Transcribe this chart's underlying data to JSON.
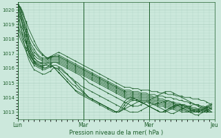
{
  "title": "",
  "xlabel": "Pression niveau de la mer( hPa )",
  "ylabel": "",
  "background_color": "#cce8dc",
  "grid_color": "#a8ccbc",
  "line_color": "#1a5c28",
  "marker_color": "#1a5c28",
  "ylim": [
    1012.5,
    1020.5
  ],
  "yticks": [
    1013,
    1014,
    1015,
    1016,
    1017,
    1018,
    1019,
    1020
  ],
  "xlim": [
    0,
    72
  ],
  "xtick_positions": [
    0,
    24,
    48,
    72
  ],
  "xtick_labels": [
    "Lun",
    "Mar",
    "Mer",
    "Jeu"
  ],
  "series": [
    [
      1020.5,
      1020.1,
      1019.7,
      1019.2,
      1018.7,
      1018.3,
      1017.9,
      1017.5,
      1017.2,
      1017.0,
      1016.8,
      1016.6,
      1016.8,
      1016.9,
      1017.0,
      1017.1,
      1017.0,
      1016.9,
      1016.8,
      1016.7,
      1016.6,
      1016.5,
      1016.4,
      1016.3,
      1016.2,
      1016.1,
      1016.0,
      1015.9,
      1015.8,
      1015.7,
      1015.6,
      1015.5,
      1015.4,
      1015.3,
      1015.2,
      1015.1,
      1015.0,
      1014.9,
      1014.8,
      1014.7,
      1014.7,
      1014.7,
      1014.6,
      1014.6,
      1014.6,
      1014.5,
      1014.5,
      1014.5,
      1014.5,
      1014.4,
      1014.4,
      1014.4,
      1014.3,
      1014.3,
      1014.3,
      1014.2,
      1014.2,
      1014.2,
      1014.1,
      1014.1,
      1014.1,
      1014.0,
      1014.0,
      1014.0,
      1013.9,
      1013.9,
      1013.9,
      1013.8,
      1013.8,
      1013.7,
      1013.6,
      1013.5
    ],
    [
      1020.2,
      1019.7,
      1019.2,
      1018.7,
      1018.3,
      1017.9,
      1017.6,
      1017.3,
      1017.1,
      1016.9,
      1016.8,
      1016.7,
      1016.8,
      1016.8,
      1016.9,
      1016.9,
      1016.8,
      1016.7,
      1016.6,
      1016.5,
      1016.4,
      1016.3,
      1016.2,
      1016.1,
      1016.0,
      1015.9,
      1015.8,
      1015.7,
      1015.6,
      1015.5,
      1015.4,
      1015.3,
      1015.2,
      1015.1,
      1015.0,
      1014.9,
      1014.8,
      1014.7,
      1014.6,
      1014.5,
      1014.5,
      1014.5,
      1014.4,
      1014.4,
      1014.4,
      1014.3,
      1014.3,
      1014.3,
      1014.2,
      1014.2,
      1014.2,
      1014.1,
      1014.1,
      1014.1,
      1014.0,
      1014.0,
      1014.0,
      1013.9,
      1013.9,
      1013.8,
      1013.8,
      1013.7,
      1013.7,
      1013.6,
      1013.6,
      1013.5,
      1013.5,
      1013.4,
      1013.4,
      1013.3,
      1013.3,
      1013.2
    ],
    [
      1019.8,
      1019.4,
      1018.9,
      1018.5,
      1018.0,
      1017.6,
      1017.3,
      1017.0,
      1016.8,
      1016.7,
      1016.7,
      1016.7,
      1016.8,
      1016.8,
      1016.8,
      1016.8,
      1016.7,
      1016.6,
      1016.5,
      1016.4,
      1016.3,
      1016.2,
      1016.1,
      1016.0,
      1015.9,
      1015.8,
      1015.7,
      1015.6,
      1015.5,
      1015.4,
      1015.3,
      1015.2,
      1015.1,
      1015.0,
      1014.9,
      1014.8,
      1014.7,
      1014.6,
      1014.5,
      1014.4,
      1014.4,
      1014.4,
      1014.3,
      1014.3,
      1014.3,
      1014.2,
      1014.2,
      1014.2,
      1014.1,
      1014.1,
      1014.0,
      1014.0,
      1013.9,
      1013.9,
      1013.8,
      1013.8,
      1013.7,
      1013.7,
      1013.6,
      1013.6,
      1013.5,
      1013.5,
      1013.4,
      1013.4,
      1013.3,
      1013.3,
      1013.2,
      1013.2,
      1013.1,
      1013.1,
      1013.0,
      1013.0
    ],
    [
      1019.5,
      1019.0,
      1018.6,
      1018.2,
      1017.8,
      1017.4,
      1017.1,
      1016.9,
      1016.7,
      1016.6,
      1016.6,
      1016.7,
      1016.7,
      1016.8,
      1016.8,
      1016.8,
      1016.7,
      1016.6,
      1016.5,
      1016.4,
      1016.3,
      1016.2,
      1016.1,
      1016.0,
      1015.9,
      1015.8,
      1015.7,
      1015.6,
      1015.5,
      1015.4,
      1015.3,
      1015.2,
      1015.1,
      1015.0,
      1014.9,
      1014.8,
      1014.7,
      1014.6,
      1014.5,
      1014.4,
      1014.3,
      1014.3,
      1014.2,
      1014.2,
      1014.2,
      1014.1,
      1014.1,
      1014.1,
      1014.0,
      1014.0,
      1013.9,
      1013.9,
      1013.8,
      1013.8,
      1013.7,
      1013.7,
      1013.6,
      1013.6,
      1013.5,
      1013.5,
      1013.4,
      1013.4,
      1013.3,
      1013.3,
      1013.2,
      1013.2,
      1013.1,
      1013.1,
      1013.0,
      1013.0,
      1013.0,
      1013.0
    ],
    [
      1019.2,
      1018.8,
      1018.3,
      1017.9,
      1017.5,
      1017.2,
      1016.9,
      1016.7,
      1016.6,
      1016.5,
      1016.5,
      1016.6,
      1016.7,
      1016.7,
      1016.7,
      1016.7,
      1016.6,
      1016.5,
      1016.4,
      1016.3,
      1016.2,
      1016.1,
      1016.0,
      1015.9,
      1015.8,
      1015.7,
      1015.6,
      1015.5,
      1015.4,
      1015.3,
      1015.2,
      1015.1,
      1015.0,
      1014.9,
      1014.8,
      1014.7,
      1014.6,
      1014.5,
      1014.4,
      1014.3,
      1014.2,
      1014.2,
      1014.1,
      1014.1,
      1014.1,
      1014.0,
      1014.0,
      1014.0,
      1013.9,
      1013.9,
      1013.8,
      1013.8,
      1013.7,
      1013.7,
      1013.6,
      1013.6,
      1013.5,
      1013.5,
      1013.4,
      1013.4,
      1013.3,
      1013.3,
      1013.2,
      1013.2,
      1013.1,
      1013.1,
      1013.0,
      1013.0,
      1013.0,
      1013.0,
      1013.1,
      1013.2
    ],
    [
      1019.0,
      1018.5,
      1018.1,
      1017.7,
      1017.3,
      1017.0,
      1016.7,
      1016.5,
      1016.4,
      1016.4,
      1016.4,
      1016.5,
      1016.6,
      1016.6,
      1016.6,
      1016.6,
      1016.5,
      1016.4,
      1016.3,
      1016.2,
      1016.1,
      1016.0,
      1015.9,
      1015.8,
      1015.7,
      1015.6,
      1015.5,
      1015.4,
      1015.3,
      1015.2,
      1015.1,
      1015.0,
      1014.9,
      1014.8,
      1014.7,
      1014.6,
      1014.5,
      1014.4,
      1014.3,
      1014.2,
      1014.1,
      1014.1,
      1014.0,
      1014.0,
      1014.0,
      1013.9,
      1013.9,
      1013.9,
      1013.8,
      1013.8,
      1013.7,
      1013.7,
      1013.6,
      1013.6,
      1013.5,
      1013.5,
      1013.4,
      1013.4,
      1013.3,
      1013.3,
      1013.2,
      1013.2,
      1013.1,
      1013.1,
      1013.0,
      1013.0,
      1013.0,
      1013.1,
      1013.1,
      1013.2,
      1013.3,
      1013.4
    ],
    [
      1018.8,
      1018.3,
      1017.8,
      1017.4,
      1017.1,
      1016.8,
      1016.5,
      1016.4,
      1016.3,
      1016.3,
      1016.3,
      1016.4,
      1016.5,
      1016.5,
      1016.5,
      1016.5,
      1016.4,
      1016.3,
      1016.2,
      1016.1,
      1016.0,
      1015.9,
      1015.8,
      1015.7,
      1015.6,
      1015.5,
      1015.4,
      1015.3,
      1015.2,
      1015.1,
      1015.0,
      1014.9,
      1014.8,
      1014.7,
      1014.6,
      1014.5,
      1014.4,
      1014.3,
      1014.2,
      1014.1,
      1014.0,
      1014.0,
      1013.9,
      1013.9,
      1013.9,
      1013.8,
      1013.8,
      1013.8,
      1013.7,
      1013.7,
      1013.6,
      1013.6,
      1013.5,
      1013.5,
      1013.4,
      1013.4,
      1013.3,
      1013.3,
      1013.2,
      1013.2,
      1013.1,
      1013.1,
      1013.0,
      1013.0,
      1013.0,
      1013.1,
      1013.1,
      1013.2,
      1013.2,
      1013.3,
      1013.4,
      1013.5
    ],
    [
      1018.5,
      1018.0,
      1017.6,
      1017.2,
      1016.8,
      1016.5,
      1016.3,
      1016.2,
      1016.1,
      1016.1,
      1016.2,
      1016.3,
      1016.4,
      1016.4,
      1016.4,
      1016.4,
      1016.3,
      1016.2,
      1016.1,
      1016.0,
      1015.9,
      1015.8,
      1015.7,
      1015.6,
      1015.5,
      1015.4,
      1015.3,
      1015.2,
      1015.1,
      1015.0,
      1014.9,
      1014.8,
      1014.7,
      1014.6,
      1014.5,
      1014.4,
      1014.3,
      1014.2,
      1014.1,
      1014.0,
      1013.9,
      1013.9,
      1013.8,
      1013.8,
      1013.8,
      1013.7,
      1013.7,
      1013.7,
      1013.6,
      1013.6,
      1013.5,
      1013.5,
      1013.4,
      1013.4,
      1013.3,
      1013.3,
      1013.2,
      1013.2,
      1013.1,
      1013.1,
      1013.0,
      1013.0,
      1013.0,
      1013.1,
      1013.1,
      1013.2,
      1013.2,
      1013.3,
      1013.3,
      1013.4,
      1013.5,
      1013.6
    ],
    [
      1020.3,
      1019.5,
      1018.7,
      1017.8,
      1017.1,
      1016.7,
      1016.4,
      1016.2,
      1016.1,
      1016.0,
      1016.0,
      1016.1,
      1016.3,
      1016.4,
      1016.4,
      1016.3,
      1016.2,
      1016.1,
      1016.0,
      1015.9,
      1015.8,
      1015.7,
      1015.6,
      1015.5,
      1015.3,
      1015.2,
      1015.0,
      1014.9,
      1014.8,
      1014.7,
      1014.6,
      1014.5,
      1014.4,
      1014.3,
      1014.2,
      1014.1,
      1014.0,
      1013.9,
      1013.8,
      1013.7,
      1013.6,
      1013.5,
      1013.4,
      1013.4,
      1013.4,
      1013.5,
      1013.6,
      1013.7,
      1013.8,
      1013.9,
      1014.0,
      1014.1,
      1014.2,
      1014.3,
      1014.4,
      1014.4,
      1014.4,
      1014.3,
      1014.2,
      1014.1,
      1014.0,
      1013.9,
      1013.8,
      1013.7,
      1013.6,
      1013.5,
      1013.4,
      1013.3,
      1013.2,
      1013.1,
      1013.0,
      1013.0
    ],
    [
      1020.1,
      1019.0,
      1018.0,
      1017.2,
      1016.6,
      1016.2,
      1015.9,
      1015.8,
      1015.7,
      1015.6,
      1015.6,
      1015.7,
      1015.8,
      1016.0,
      1016.0,
      1016.0,
      1015.9,
      1015.7,
      1015.6,
      1015.4,
      1015.3,
      1015.1,
      1015.0,
      1014.8,
      1014.7,
      1014.6,
      1014.5,
      1014.4,
      1014.3,
      1014.2,
      1014.1,
      1014.0,
      1013.9,
      1013.8,
      1013.7,
      1013.6,
      1013.5,
      1013.4,
      1013.3,
      1013.2,
      1013.1,
      1013.0,
      1013.0,
      1013.0,
      1013.0,
      1013.1,
      1013.2,
      1013.3,
      1013.4,
      1013.5,
      1013.5,
      1013.6,
      1013.6,
      1013.7,
      1013.7,
      1013.8,
      1013.7,
      1013.6,
      1013.5,
      1013.4,
      1013.3,
      1013.2,
      1013.1,
      1013.0,
      1012.9,
      1012.8,
      1012.8,
      1012.9,
      1013.0,
      1013.1,
      1013.2,
      1013.3
    ],
    [
      1020.5,
      1019.8,
      1018.8,
      1017.8,
      1017.0,
      1016.5,
      1016.2,
      1016.1,
      1016.0,
      1015.9,
      1015.9,
      1016.0,
      1016.1,
      1016.2,
      1016.2,
      1016.1,
      1016.0,
      1015.8,
      1015.6,
      1015.4,
      1015.2,
      1015.0,
      1014.8,
      1014.6,
      1014.4,
      1014.2,
      1014.0,
      1013.9,
      1013.8,
      1013.7,
      1013.6,
      1013.5,
      1013.4,
      1013.3,
      1013.2,
      1013.1,
      1013.0,
      1013.0,
      1013.1,
      1013.2,
      1013.3,
      1013.4,
      1013.5,
      1013.6,
      1013.7,
      1013.8,
      1013.8,
      1013.8,
      1013.7,
      1013.6,
      1013.5,
      1013.4,
      1013.3,
      1013.2,
      1013.1,
      1013.0,
      1012.9,
      1012.9,
      1013.0,
      1013.1,
      1013.2,
      1013.3,
      1013.4,
      1013.4,
      1013.5,
      1013.5,
      1013.5,
      1013.4,
      1013.3,
      1013.2,
      1013.1,
      1013.0
    ],
    [
      1020.5,
      1020.0,
      1019.2,
      1018.3,
      1017.3,
      1016.7,
      1016.4,
      1016.3,
      1016.2,
      1016.1,
      1016.0,
      1016.1,
      1016.1,
      1016.1,
      1016.0,
      1015.9,
      1015.7,
      1015.5,
      1015.3,
      1015.1,
      1014.9,
      1014.8,
      1014.6,
      1014.5,
      1014.3,
      1014.2,
      1014.0,
      1013.9,
      1013.8,
      1013.7,
      1013.6,
      1013.5,
      1013.4,
      1013.3,
      1013.2,
      1013.1,
      1013.0,
      1013.0,
      1013.1,
      1013.3,
      1013.5,
      1013.7,
      1013.8,
      1013.8,
      1013.7,
      1013.7,
      1013.6,
      1013.5,
      1013.4,
      1013.3,
      1013.2,
      1013.1,
      1013.0,
      1013.0,
      1013.0,
      1013.1,
      1013.2,
      1013.3,
      1013.4,
      1013.5,
      1013.5,
      1013.5,
      1013.4,
      1013.3,
      1013.2,
      1013.1,
      1013.0,
      1013.0,
      1013.0,
      1013.1,
      1013.2,
      1013.3
    ],
    [
      1020.4,
      1020.1,
      1019.5,
      1018.7,
      1017.7,
      1016.9,
      1016.5,
      1016.3,
      1016.2,
      1016.2,
      1016.2,
      1016.2,
      1016.2,
      1016.1,
      1015.9,
      1015.7,
      1015.5,
      1015.3,
      1015.1,
      1014.9,
      1014.7,
      1014.5,
      1014.4,
      1014.3,
      1014.2,
      1014.1,
      1014.0,
      1013.9,
      1013.8,
      1013.7,
      1013.6,
      1013.5,
      1013.4,
      1013.3,
      1013.2,
      1013.1,
      1013.0,
      1013.0,
      1013.2,
      1013.5,
      1013.7,
      1013.8,
      1013.9,
      1013.9,
      1013.8,
      1013.7,
      1013.6,
      1013.5,
      1013.4,
      1013.3,
      1013.2,
      1013.1,
      1013.0,
      1013.0,
      1013.1,
      1013.2,
      1013.3,
      1013.4,
      1013.5,
      1013.5,
      1013.5,
      1013.4,
      1013.3,
      1013.2,
      1013.1,
      1013.0,
      1013.0,
      1013.1,
      1013.2,
      1013.3,
      1013.4,
      1013.5
    ],
    [
      1020.3,
      1020.2,
      1019.8,
      1019.1,
      1018.1,
      1017.2,
      1016.7,
      1016.5,
      1016.4,
      1016.3,
      1016.3,
      1016.4,
      1016.3,
      1016.1,
      1015.9,
      1015.7,
      1015.5,
      1015.3,
      1015.1,
      1014.9,
      1014.7,
      1014.5,
      1014.3,
      1014.2,
      1014.1,
      1014.0,
      1013.9,
      1013.8,
      1013.7,
      1013.6,
      1013.5,
      1013.4,
      1013.3,
      1013.2,
      1013.1,
      1013.0,
      1013.0,
      1013.1,
      1013.4,
      1013.7,
      1013.9,
      1014.0,
      1014.0,
      1013.9,
      1013.8,
      1013.7,
      1013.6,
      1013.5,
      1013.4,
      1013.3,
      1013.2,
      1013.1,
      1013.0,
      1013.0,
      1013.1,
      1013.2,
      1013.3,
      1013.4,
      1013.5,
      1013.5,
      1013.5,
      1013.4,
      1013.3,
      1013.2,
      1013.1,
      1013.0,
      1013.0,
      1013.1,
      1013.2,
      1013.3,
      1013.4,
      1013.5
    ]
  ]
}
